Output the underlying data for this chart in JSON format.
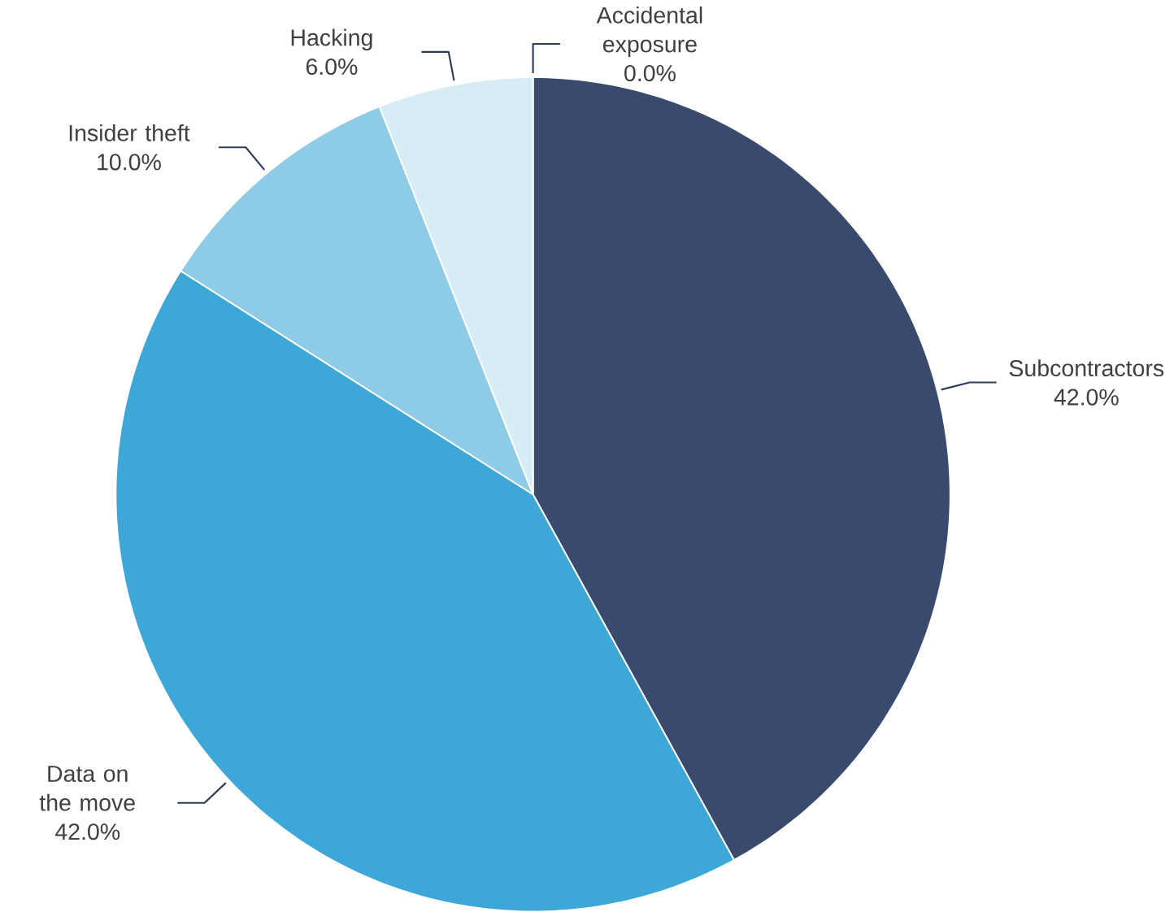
{
  "chart_data": {
    "type": "pie",
    "categories": [
      "Subcontractors",
      "Data on the move",
      "Insider theft",
      "Hacking",
      "Accidental exposure"
    ],
    "values": [
      42,
      42,
      10,
      6,
      0
    ],
    "value_labels": [
      "42.0%",
      "42.0%",
      "10.0%",
      "6.0%",
      "0.0%"
    ],
    "colors": [
      "#3a4a6e",
      "#3da7d7",
      "#8ecbe6",
      "#d6edf5",
      "#26355a"
    ]
  }
}
